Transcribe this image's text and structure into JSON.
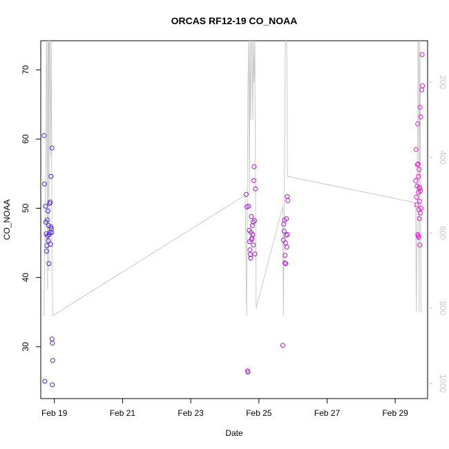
{
  "chart_data": {
    "type": "scatter",
    "title": "ORCAS RF12-19 CO_NOAA",
    "xlabel": "Date",
    "ylabel": "CO_NOAA",
    "xlim_days": [
      18.6,
      29.95
    ],
    "ylim": [
      22.5,
      74.2
    ],
    "y2lim": [
      1040,
      90
    ],
    "x_ticks": [
      {
        "value": 19,
        "label": "Feb 19"
      },
      {
        "value": 21,
        "label": "Feb 21"
      },
      {
        "value": 23,
        "label": "Feb 23"
      },
      {
        "value": 25,
        "label": "Feb 25"
      },
      {
        "value": 27,
        "label": "Feb 27"
      },
      {
        "value": 29,
        "label": "Feb 29"
      }
    ],
    "y_ticks": [
      30,
      40,
      50,
      60,
      70
    ],
    "y2_ticks": [
      200,
      400,
      600,
      800,
      1000
    ],
    "y2_note": "pressure trace (gray line), reversed right axis",
    "grid": false,
    "colors": {
      "start": "#4b1ee8",
      "end": "#f216d8",
      "line": "#c8c8c8",
      "axis": "#000000",
      "axis2": "#c8c8c8"
    },
    "series": [
      {
        "values": [
          [
            18.7,
            60.5
          ],
          [
            18.71,
            53.5
          ],
          [
            18.72,
            25.0
          ],
          [
            18.74,
            50.3
          ],
          [
            18.75,
            48.0
          ],
          [
            18.76,
            46.3
          ],
          [
            18.77,
            43.8
          ],
          [
            18.78,
            44.6
          ],
          [
            18.79,
            48.3
          ],
          [
            18.8,
            46.0
          ],
          [
            18.81,
            49.6
          ],
          [
            18.82,
            45.3
          ],
          [
            18.83,
            47.5
          ],
          [
            18.84,
            42.0
          ],
          [
            18.85,
            46.2
          ],
          [
            18.86,
            50.7
          ],
          [
            18.87,
            46.5
          ],
          [
            18.88,
            50.9
          ],
          [
            18.89,
            44.8
          ],
          [
            18.9,
            54.6
          ],
          [
            18.9,
            47.3
          ],
          [
            18.91,
            47.0
          ],
          [
            18.92,
            46.5
          ],
          [
            18.93,
            31.1
          ],
          [
            18.94,
            30.5
          ],
          [
            18.94,
            24.5
          ],
          [
            18.95,
            28.0
          ],
          [
            18.93,
            58.7
          ],
          [
            24.63,
            52.0
          ],
          [
            24.65,
            50.2
          ],
          [
            24.67,
            26.5
          ],
          [
            24.68,
            26.3
          ],
          [
            24.7,
            50.3
          ],
          [
            24.72,
            46.8
          ],
          [
            24.73,
            45.2
          ],
          [
            24.74,
            44.0
          ],
          [
            24.75,
            43.3
          ],
          [
            24.76,
            42.8
          ],
          [
            24.77,
            46.5
          ],
          [
            24.78,
            48.8
          ],
          [
            24.79,
            45.5
          ],
          [
            24.8,
            45.7
          ],
          [
            24.81,
            47.5
          ],
          [
            24.82,
            46.2
          ],
          [
            24.83,
            48.0
          ],
          [
            24.84,
            44.7
          ],
          [
            24.85,
            54.0
          ],
          [
            24.86,
            56.0
          ],
          [
            24.87,
            48.2
          ],
          [
            24.88,
            43.4
          ],
          [
            24.9,
            52.8
          ],
          [
            25.7,
            30.2
          ],
          [
            25.72,
            45.4
          ],
          [
            25.73,
            47.7
          ],
          [
            25.74,
            46.7
          ],
          [
            25.75,
            48.3
          ],
          [
            25.76,
            42.1
          ],
          [
            25.77,
            43.2
          ],
          [
            25.78,
            45.0
          ],
          [
            25.79,
            42.0
          ],
          [
            25.8,
            46.1
          ],
          [
            25.81,
            48.5
          ],
          [
            25.82,
            44.4
          ],
          [
            25.83,
            51.7
          ],
          [
            25.84,
            46.2
          ],
          [
            25.85,
            51.1
          ],
          [
            29.6,
            54.0
          ],
          [
            29.61,
            58.5
          ],
          [
            29.62,
            51.6
          ],
          [
            29.63,
            50.5
          ],
          [
            29.64,
            53.2
          ],
          [
            29.65,
            56.3
          ],
          [
            29.66,
            62.2
          ],
          [
            29.66,
            46.2
          ],
          [
            29.67,
            46.0
          ],
          [
            29.68,
            52.3
          ],
          [
            29.68,
            54.6
          ],
          [
            29.69,
            49.8
          ],
          [
            29.7,
            53.0
          ],
          [
            29.7,
            55.6
          ],
          [
            29.71,
            48.5
          ],
          [
            29.72,
            52.9
          ],
          [
            29.72,
            44.7
          ],
          [
            29.73,
            64.6
          ],
          [
            29.74,
            49.3
          ],
          [
            29.75,
            63.2
          ],
          [
            29.76,
            50.0
          ],
          [
            29.78,
            67.1
          ],
          [
            29.79,
            72.2
          ],
          [
            29.8,
            67.7
          ],
          [
            29.67,
            56.4
          ],
          [
            29.71,
            51.0
          ],
          [
            29.74,
            52.5
          ],
          [
            29.69,
            45.8
          ]
        ]
      }
    ],
    "line_y2": [
      [
        18.7,
        820
      ],
      [
        18.73,
        520
      ],
      [
        18.75,
        400
      ],
      [
        18.76,
        160
      ],
      [
        18.77,
        90
      ],
      [
        18.78,
        180
      ],
      [
        18.79,
        600
      ],
      [
        18.8,
        750
      ],
      [
        18.81,
        90
      ],
      [
        18.83,
        90
      ],
      [
        18.84,
        700
      ],
      [
        18.85,
        90
      ],
      [
        18.87,
        90
      ],
      [
        18.89,
        400
      ],
      [
        18.91,
        90
      ],
      [
        18.93,
        700
      ],
      [
        18.95,
        820
      ],
      [
        24.6,
        500
      ],
      [
        24.64,
        820
      ],
      [
        24.66,
        540
      ],
      [
        24.68,
        200
      ],
      [
        24.7,
        90
      ],
      [
        24.72,
        500
      ],
      [
        24.74,
        90
      ],
      [
        24.76,
        300
      ],
      [
        24.78,
        90
      ],
      [
        24.8,
        90
      ],
      [
        24.82,
        300
      ],
      [
        24.84,
        90
      ],
      [
        24.86,
        200
      ],
      [
        24.88,
        90
      ],
      [
        24.92,
        800
      ],
      [
        25.7,
        530
      ],
      [
        25.72,
        820
      ],
      [
        25.74,
        580
      ],
      [
        25.76,
        300
      ],
      [
        25.77,
        130
      ],
      [
        25.78,
        90
      ],
      [
        25.79,
        90
      ],
      [
        25.81,
        90
      ],
      [
        25.82,
        120
      ],
      [
        25.84,
        450
      ],
      [
        29.6,
        520
      ],
      [
        29.62,
        810
      ],
      [
        29.64,
        600
      ],
      [
        29.66,
        300
      ],
      [
        29.67,
        100
      ],
      [
        29.68,
        90
      ],
      [
        29.69,
        150
      ],
      [
        29.7,
        810
      ],
      [
        29.72,
        90
      ],
      [
        29.74,
        300
      ],
      [
        29.76,
        810
      ],
      [
        29.78,
        810
      ],
      [
        29.8,
        810
      ]
    ]
  }
}
